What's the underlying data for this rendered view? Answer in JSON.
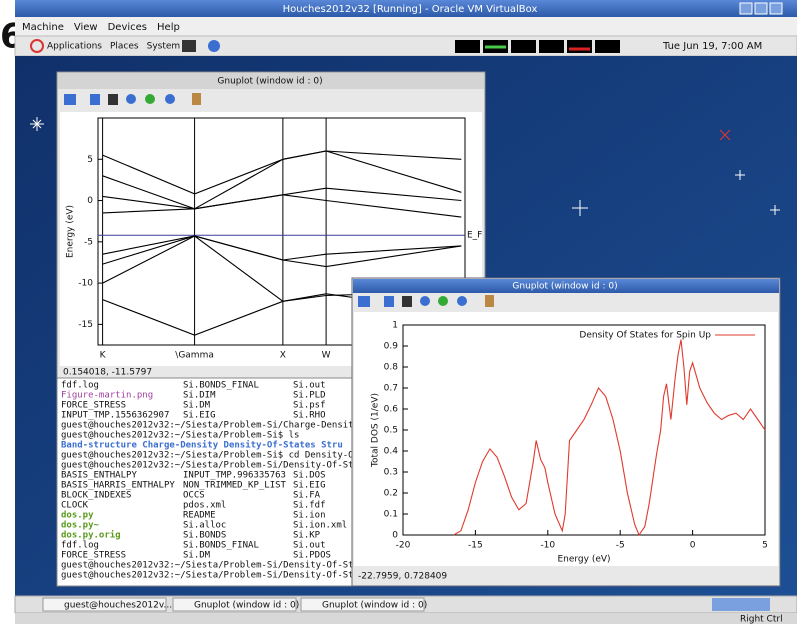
{
  "page_fragment": "6",
  "vbox": {
    "title": "Houches2012v32 [Running] - Oracle VM VirtualBox",
    "menu": [
      "Machine",
      "View",
      "Devices",
      "Help"
    ]
  },
  "panel": {
    "menu": [
      "Applications",
      "Places",
      "System"
    ],
    "clock": "Tue Jun 19, 7:00 AM"
  },
  "band_window": {
    "title": "Gnuplot (window id : 0)",
    "status": "0.154018, -11.5797",
    "chart_data": {
      "type": "line",
      "ylabel": "Energy (eV)",
      "x": [
        0,
        1,
        1.96,
        2.43,
        3.9
      ],
      "xlim": [
        -0.05,
        3.94
      ],
      "xticks": [
        {
          "value": 0,
          "label": "K"
        },
        {
          "value": 1,
          "label": "\\Gamma"
        },
        {
          "value": 1.96,
          "label": "X"
        },
        {
          "value": 2.43,
          "label": "W"
        }
      ],
      "xgrid": true,
      "ylim": [
        -17.5,
        10
      ],
      "yticks": [
        5,
        0,
        -5,
        -10,
        -15
      ],
      "fermi_level": {
        "value": -4.2,
        "label": "E_F",
        "color": "#3a3aa0"
      },
      "series": [
        {
          "color": "#000000",
          "values": [
            -12,
            -16.3,
            -12.2,
            -11.3,
            -13.5
          ]
        },
        {
          "color": "#000000",
          "values": [
            -10,
            -4.3,
            -12.2,
            -11.5,
            -11
          ]
        },
        {
          "color": "#000000",
          "values": [
            -7.7,
            -4.3,
            -7.2,
            -8,
            -5.5
          ]
        },
        {
          "color": "#000000",
          "values": [
            -6.5,
            -4.3,
            -7.2,
            -6.5,
            -5.5
          ]
        },
        {
          "color": "#000000",
          "values": [
            -1.5,
            -1,
            0.7,
            0,
            -2
          ]
        },
        {
          "color": "#000000",
          "values": [
            0.5,
            -1,
            0.7,
            1.5,
            0
          ]
        },
        {
          "color": "#000000",
          "values": [
            3,
            -1,
            5,
            6,
            1
          ]
        },
        {
          "color": "#000000",
          "values": [
            5.5,
            0.8,
            5,
            6,
            5
          ]
        }
      ]
    }
  },
  "terminal": {
    "lines": [
      [
        "fdf.log",
        "Si.BONDS_FINAL",
        "Si.out"
      ],
      [
        "Figure-martin.png",
        "Si.DIM",
        "Si.PLD"
      ],
      [
        "FORCE_STRESS",
        "Si.DM",
        "Si.psf"
      ],
      [
        "INPUT_TMP.1556362907",
        "Si.EIG",
        "Si.RHO"
      ],
      [
        "guest@houches2012v32:~/Siesta/Problem-Si/Charge-Density"
      ],
      [
        "guest@houches2012v32:~/Siesta/Problem-Si$ ls"
      ],
      [
        "Band-structure  Charge-Density  Density-Of-States  Stru"
      ],
      [
        "guest@houches2012v32:~/Siesta/Problem-Si$ cd Density-Of"
      ],
      [
        "guest@houches2012v32:~/Siesta/Problem-Si/Density-Of-Sta"
      ],
      [
        "BASIS_ENTHALPY",
        "INPUT_TMP.996335763",
        "Si.DOS"
      ],
      [
        "BASIS_HARRIS_ENTHALPY",
        "NON_TRIMMED_KP_LIST",
        "Si.EIG"
      ],
      [
        "BLOCK_INDEXES",
        "OCCS",
        "Si.FA"
      ],
      [
        "CLOCK",
        "pdos.xml",
        "Si.fdf"
      ],
      [
        "dos.py",
        "README",
        "Si.ion"
      ],
      [
        "dos.py~",
        "Si.alloc",
        "Si.ion.xml"
      ],
      [
        "dos.py.orig",
        "Si.BONDS",
        "Si.KP"
      ],
      [
        "fdf.log",
        "Si.BONDS_FINAL",
        "Si.out"
      ],
      [
        "FORCE_STRESS",
        "Si.DM",
        "Si.PDOS"
      ],
      [
        "guest@houches2012v32:~/Siesta/Problem-Si/Density-Of-Sta"
      ],
      [
        "guest@houches2012v32:~/Siesta/Problem-Si/Density-Of-Sta"
      ]
    ]
  },
  "dos_window": {
    "title": "Gnuplot (window id : 0)",
    "status": "-22.7959, 0.728409",
    "chart_data": {
      "type": "line",
      "xlabel": "Energy (eV)",
      "ylabel": "Total DOS (1/eV)",
      "xlim": [
        -20,
        5
      ],
      "xticks": [
        -20,
        -15,
        -10,
        -5,
        0,
        5
      ],
      "ylim": [
        0,
        1
      ],
      "yticks": [
        0,
        0.1,
        0.2,
        0.3,
        0.4,
        0.5,
        0.6,
        0.7,
        0.8,
        0.9,
        1
      ],
      "legend": "upper right",
      "x": [
        -16.5,
        -16,
        -15.5,
        -15,
        -14.5,
        -14,
        -13.5,
        -13,
        -12.5,
        -12,
        -11.5,
        -11,
        -10.8,
        -10.5,
        -10.2,
        -10,
        -9.5,
        -9,
        -8.8,
        -8.5,
        -8,
        -7.5,
        -7,
        -6.5,
        -6,
        -5.5,
        -5,
        -4.5,
        -4,
        -3.7,
        -3.3,
        -3,
        -2.5,
        -2.2,
        -2,
        -1.8,
        -1.5,
        -1.2,
        -1,
        -0.8,
        -0.6,
        -0.4,
        -0.2,
        0,
        0.5,
        1,
        1.5,
        2,
        2.5,
        3,
        3.5,
        4,
        4.5,
        5
      ],
      "series": [
        {
          "name": "Density Of States for Spin Up",
          "color": "#e03a2e",
          "values": [
            0,
            0.02,
            0.12,
            0.25,
            0.35,
            0.41,
            0.37,
            0.28,
            0.18,
            0.12,
            0.15,
            0.35,
            0.45,
            0.36,
            0.32,
            0.25,
            0.1,
            0.02,
            0.1,
            0.45,
            0.5,
            0.55,
            0.62,
            0.7,
            0.66,
            0.55,
            0.4,
            0.2,
            0.05,
            0,
            0.04,
            0.15,
            0.38,
            0.5,
            0.66,
            0.72,
            0.55,
            0.75,
            0.86,
            0.93,
            0.8,
            0.62,
            0.78,
            0.82,
            0.7,
            0.63,
            0.58,
            0.55,
            0.57,
            0.58,
            0.55,
            0.6,
            0.55,
            0.5
          ]
        }
      ]
    }
  },
  "taskbar": {
    "items": [
      "guest@houches2012v...",
      "Gnuplot (window id : 0)",
      "Gnuplot (window id : 0)"
    ],
    "keyboard": "Right Ctrl"
  }
}
